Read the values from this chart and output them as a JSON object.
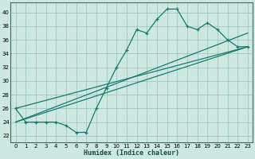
{
  "xlabel": "Humidex (Indice chaleur)",
  "bg_color": "#cce8e0",
  "line_color": "#1a7a6e",
  "grid_color": "#a0c8c0",
  "xlim": [
    -0.5,
    23.5
  ],
  "ylim": [
    21.0,
    41.5
  ],
  "xticks": [
    0,
    1,
    2,
    3,
    4,
    5,
    6,
    7,
    8,
    9,
    10,
    11,
    12,
    13,
    14,
    15,
    16,
    17,
    18,
    19,
    20,
    21,
    22,
    23
  ],
  "yticks": [
    22,
    24,
    26,
    28,
    30,
    32,
    34,
    36,
    38,
    40
  ],
  "main_series": {
    "x": [
      0,
      1,
      2,
      3,
      4,
      5,
      6,
      7,
      8,
      9,
      10,
      11,
      12,
      13,
      14,
      15,
      16,
      17,
      18,
      19,
      20,
      21,
      22,
      23
    ],
    "y": [
      26,
      24,
      24,
      24,
      24,
      23.5,
      22.5,
      22.5,
      26,
      29,
      32,
      34.5,
      37.5,
      37,
      39,
      40.5,
      40.5,
      38,
      37.5,
      38.5,
      37.5,
      36,
      35,
      35
    ]
  },
  "line1": {
    "x": [
      0,
      23
    ],
    "y": [
      26,
      35
    ]
  },
  "line2": {
    "x": [
      0,
      23
    ],
    "y": [
      24,
      37
    ]
  },
  "line3": {
    "x": [
      0,
      23
    ],
    "y": [
      24,
      35
    ]
  }
}
